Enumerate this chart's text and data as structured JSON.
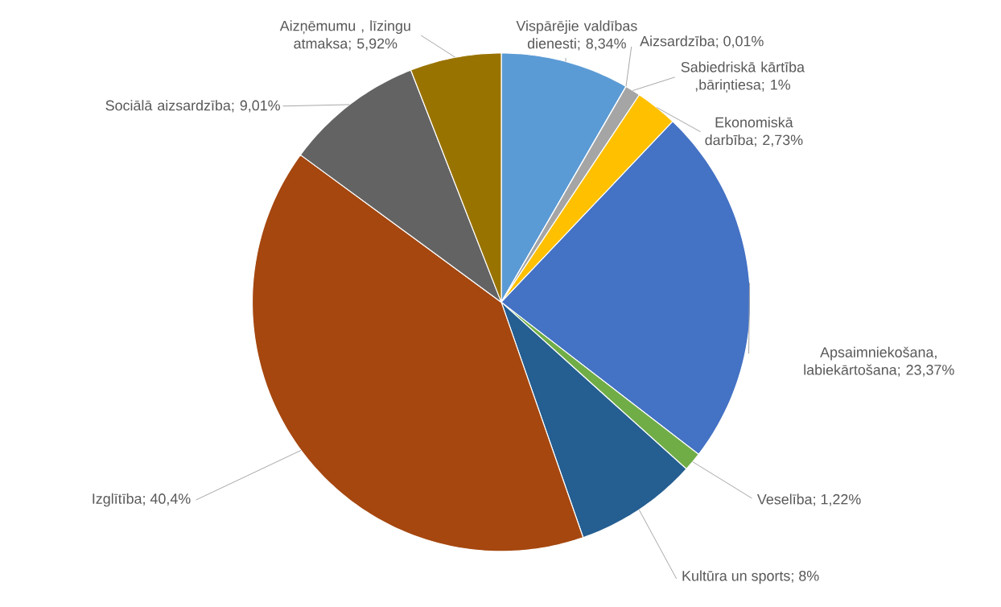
{
  "chart_data": {
    "type": "pie",
    "categories": [
      "Vispārējie valdības dienesti",
      "Aizsardzība",
      "Sabiedriskā kārtība ,bāriņtiesa",
      "Ekonomiskā darbība",
      "Apsaimniekošana, labiekārtošana",
      "Veselība",
      "Kultūra un sports",
      "Izglītība",
      "Sociālā aizsardzība",
      "Aizņēmumu , līzingu atmaksa"
    ],
    "values": [
      8.34,
      0.01,
      1,
      2.73,
      23.37,
      1.22,
      8,
      40.4,
      9.01,
      5.92
    ],
    "value_labels": [
      "; 8,34%",
      "; 0,01%",
      "; 1%",
      "; 2,73%",
      "; 23,37%",
      "; 1,22%",
      "; 8%",
      "; 40,4%",
      "; 9,01%",
      "; 5,92%"
    ],
    "colors": [
      "#5b9bd5",
      "#ed7d31",
      "#a5a5a5",
      "#ffc000",
      "#4472c4",
      "#70ad47",
      "#255e91",
      "#a5470f",
      "#636363",
      "#997300"
    ]
  }
}
